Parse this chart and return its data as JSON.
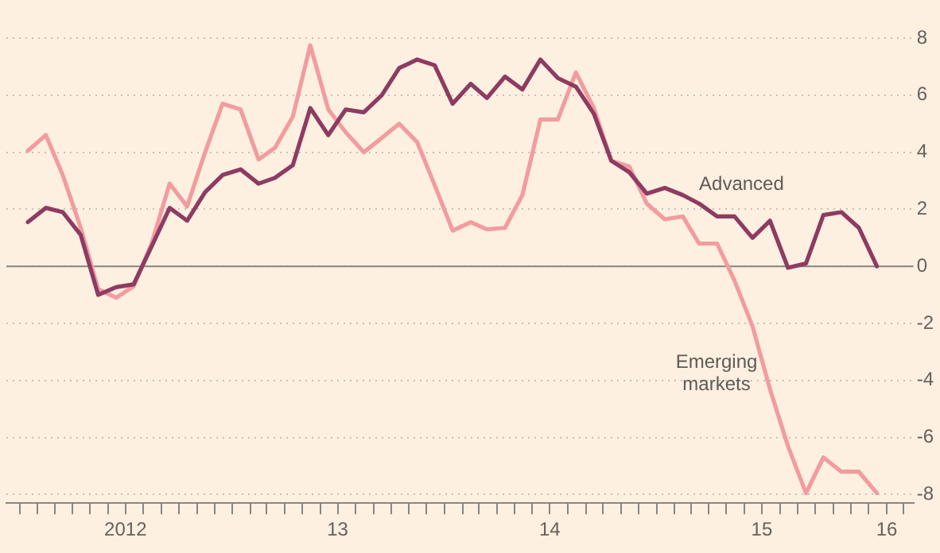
{
  "chart_data": {
    "type": "line",
    "x": [
      "2012-01-15",
      "2012-02-15",
      "2012-03-15",
      "2012-04-15",
      "2012-05-15",
      "2012-06-15",
      "2012-07-15",
      "2012-08-15",
      "2012-09-15",
      "2012-10-15",
      "2012-11-15",
      "2012-12-15",
      "2013-01-15",
      "2013-02-15",
      "2013-03-15",
      "2013-04-15",
      "2013-05-15",
      "2013-06-15",
      "2013-07-15",
      "2013-08-15",
      "2013-09-15",
      "2013-10-15",
      "2013-11-15",
      "2013-12-15",
      "2014-01-15",
      "2014-02-15",
      "2014-03-15",
      "2014-04-15",
      "2014-05-15",
      "2014-06-15",
      "2014-07-15",
      "2014-08-15",
      "2014-09-15",
      "2014-10-15",
      "2014-11-15",
      "2014-12-15",
      "2015-01-15",
      "2015-02-15",
      "2015-03-15",
      "2015-04-15",
      "2015-05-15",
      "2015-06-15",
      "2015-07-15",
      "2015-08-15",
      "2015-09-15",
      "2015-10-15",
      "2015-11-15",
      "2015-12-15",
      "2016-01-15"
    ],
    "series": [
      {
        "name": "Advanced",
        "color": "#8e3b62",
        "values": [
          1.55,
          2.05,
          1.9,
          1.1,
          -1.0,
          -0.73,
          -0.63,
          0.7,
          2.05,
          1.6,
          2.6,
          3.2,
          3.4,
          2.9,
          3.1,
          3.55,
          5.55,
          4.6,
          5.5,
          5.4,
          6.0,
          6.95,
          7.25,
          7.05,
          5.7,
          6.4,
          5.9,
          6.65,
          6.2,
          7.25,
          6.6,
          6.3,
          5.35,
          3.7,
          3.3,
          2.55,
          2.75,
          2.5,
          2.2,
          1.75,
          1.75,
          1.0,
          1.6,
          -0.05,
          0.1,
          1.8,
          1.9,
          1.35,
          0.0
        ]
      },
      {
        "name": "Emerging markets",
        "color": "#f29ca0",
        "values": [
          4.05,
          4.6,
          3.2,
          1.35,
          -0.8,
          -1.1,
          -0.7,
          0.8,
          2.9,
          2.1,
          4.0,
          5.7,
          5.5,
          3.75,
          4.15,
          5.25,
          7.75,
          5.5,
          4.7,
          4.0,
          4.5,
          5.0,
          4.35,
          2.85,
          1.25,
          1.55,
          1.3,
          1.35,
          2.5,
          5.15,
          5.15,
          6.8,
          5.55,
          3.7,
          3.5,
          2.2,
          1.65,
          1.75,
          0.8,
          0.8,
          -0.5,
          -2.1,
          -4.3,
          -6.3,
          -7.95,
          -6.7,
          -7.2,
          -7.2,
          -7.95
        ]
      }
    ],
    "xlim": [
      "2011-12-09",
      "2016-03-18"
    ],
    "xticks": [
      {
        "value": "2012-01",
        "label": null
      },
      {
        "value": "2012-02",
        "label": null
      },
      {
        "value": "2012-03",
        "label": null
      },
      {
        "value": "2012-04",
        "label": null
      },
      {
        "value": "2012-05",
        "label": null
      },
      {
        "value": "2012-06",
        "label": null
      },
      {
        "value": "2012-07",
        "label": "2012"
      },
      {
        "value": "2012-08",
        "label": null
      },
      {
        "value": "2012-09",
        "label": null
      },
      {
        "value": "2012-10",
        "label": null
      },
      {
        "value": "2012-11",
        "label": null
      },
      {
        "value": "2012-12",
        "label": null
      },
      {
        "value": "2013-01",
        "label": null
      },
      {
        "value": "2013-02",
        "label": null
      },
      {
        "value": "2013-03",
        "label": null
      },
      {
        "value": "2013-04",
        "label": null
      },
      {
        "value": "2013-05",
        "label": null
      },
      {
        "value": "2013-06",
        "label": null
      },
      {
        "value": "2013-07",
        "label": "13"
      },
      {
        "value": "2013-08",
        "label": null
      },
      {
        "value": "2013-09",
        "label": null
      },
      {
        "value": "2013-10",
        "label": null
      },
      {
        "value": "2013-11",
        "label": null
      },
      {
        "value": "2013-12",
        "label": null
      },
      {
        "value": "2014-01",
        "label": null
      },
      {
        "value": "2014-02",
        "label": null
      },
      {
        "value": "2014-03",
        "label": null
      },
      {
        "value": "2014-04",
        "label": null
      },
      {
        "value": "2014-05",
        "label": null
      },
      {
        "value": "2014-06",
        "label": null
      },
      {
        "value": "2014-07",
        "label": "14"
      },
      {
        "value": "2014-08",
        "label": null
      },
      {
        "value": "2014-09",
        "label": null
      },
      {
        "value": "2014-10",
        "label": null
      },
      {
        "value": "2014-11",
        "label": null
      },
      {
        "value": "2014-12",
        "label": null
      },
      {
        "value": "2015-01",
        "label": null
      },
      {
        "value": "2015-02",
        "label": null
      },
      {
        "value": "2015-03",
        "label": null
      },
      {
        "value": "2015-04",
        "label": null
      },
      {
        "value": "2015-05",
        "label": null
      },
      {
        "value": "2015-06",
        "label": null
      },
      {
        "value": "2015-07",
        "label": "15"
      },
      {
        "value": "2015-08",
        "label": null
      },
      {
        "value": "2015-09",
        "label": null
      },
      {
        "value": "2015-10",
        "label": null
      },
      {
        "value": "2015-11",
        "label": null
      },
      {
        "value": "2015-12",
        "label": null
      },
      {
        "value": "2016-01",
        "label": null
      },
      {
        "value": "2016-02",
        "label": "16"
      },
      {
        "value": "2016-03",
        "label": null
      }
    ],
    "ylim": [
      -8.3,
      8
    ],
    "yticks": [
      -8,
      -6,
      -4,
      -2,
      0,
      2,
      4,
      6,
      8
    ],
    "ref_lines": [
      {
        "axis": "y",
        "value": 0,
        "color": "#8a8580"
      }
    ],
    "grid": "y",
    "legend": false,
    "marker": "none",
    "line_style": "solid"
  }
}
